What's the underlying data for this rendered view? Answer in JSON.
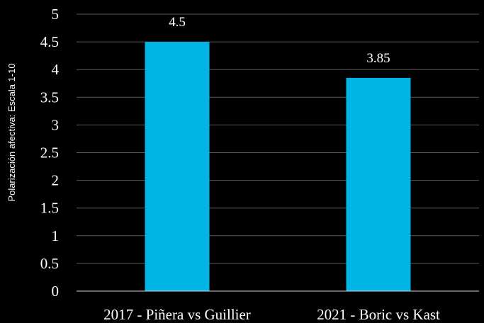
{
  "chart_data": {
    "type": "bar",
    "categories": [
      "2017 - Piñera vs Guillier",
      "2021 - Boric vs Kast"
    ],
    "values": [
      4.5,
      3.85
    ],
    "value_labels": [
      "4.5",
      "3.85"
    ],
    "ylabel": "Polarización afectiva: Escala 1-10",
    "ylim": [
      0,
      5
    ],
    "yticks": [
      0,
      0.5,
      1,
      1.5,
      2,
      2.5,
      3,
      3.5,
      4,
      4.5,
      5
    ],
    "ytick_labels": [
      "0",
      "0.5",
      "1",
      "1.5",
      "2",
      "2.5",
      "3",
      "3.5",
      "4",
      "4.5",
      "5"
    ],
    "grid": true,
    "legend": "none",
    "colors": {
      "background": "#000000",
      "bar": "#00b4e6",
      "grid": "#595959",
      "text": "#ffffff"
    }
  }
}
